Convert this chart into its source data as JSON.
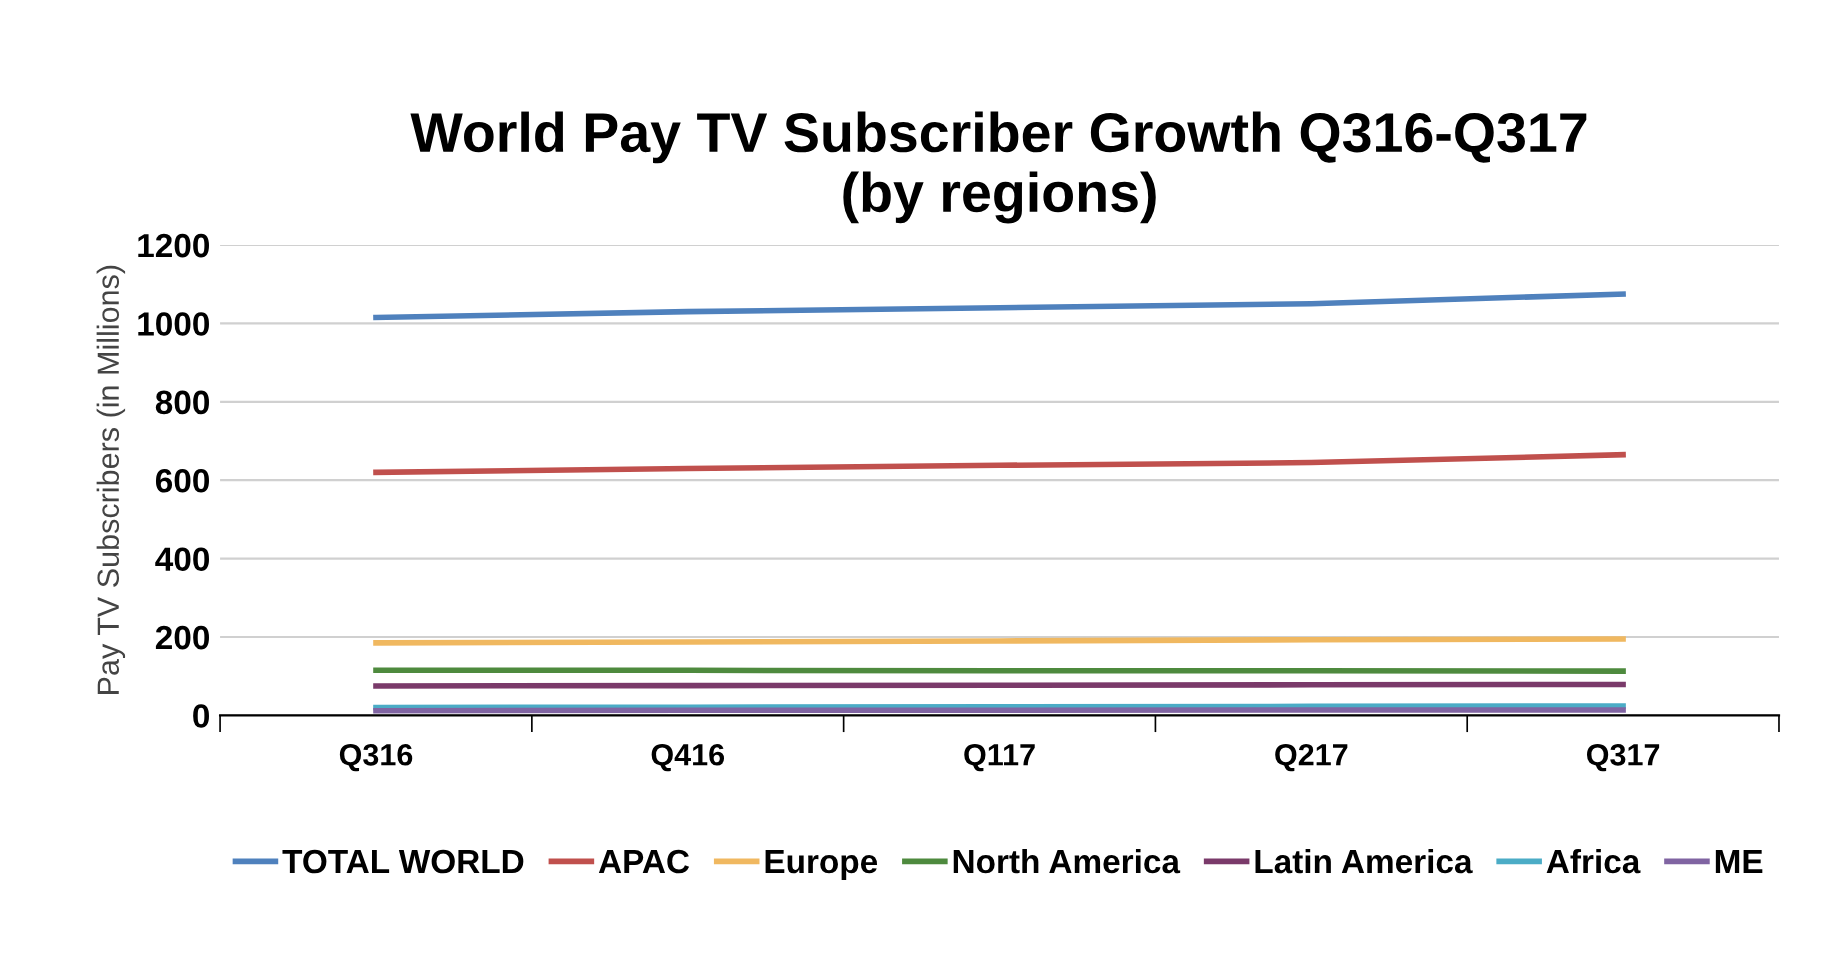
{
  "chart_data": {
    "type": "line",
    "title": "World Pay TV Subscriber Growth Q316-Q317\n(by regions)",
    "ylabel": "Pay TV Subscribers (in Millions)",
    "categories": [
      "Q316",
      "Q416",
      "Q117",
      "Q217",
      "Q317"
    ],
    "series": [
      {
        "name": "TOTAL WORLD",
        "color": "#4f81bd",
        "values": [
          1015,
          1030,
          1040,
          1050,
          1075
        ]
      },
      {
        "name": "APAC",
        "color": "#c0504d",
        "values": [
          620,
          630,
          638,
          645,
          665
        ]
      },
      {
        "name": "Europe",
        "color": "#f0b860",
        "values": [
          185,
          187,
          190,
          193,
          195
        ]
      },
      {
        "name": "North America",
        "color": "#4e8a3e",
        "values": [
          115,
          115,
          114,
          114,
          113
        ]
      },
      {
        "name": "Latin America",
        "color": "#7a3a6a",
        "values": [
          75,
          76,
          77,
          78,
          79
        ]
      },
      {
        "name": "Africa",
        "color": "#4bacc6",
        "values": [
          20,
          21,
          22,
          23,
          24
        ]
      },
      {
        "name": "ME",
        "color": "#8064a2",
        "values": [
          12,
          13,
          13,
          14,
          14
        ]
      }
    ],
    "ylim": [
      0,
      1200
    ],
    "yticks": [
      0,
      200,
      400,
      600,
      800,
      1000,
      1200
    ],
    "grid": "y",
    "legend": "bottom",
    "marker": "none",
    "line_style": "solid"
  }
}
